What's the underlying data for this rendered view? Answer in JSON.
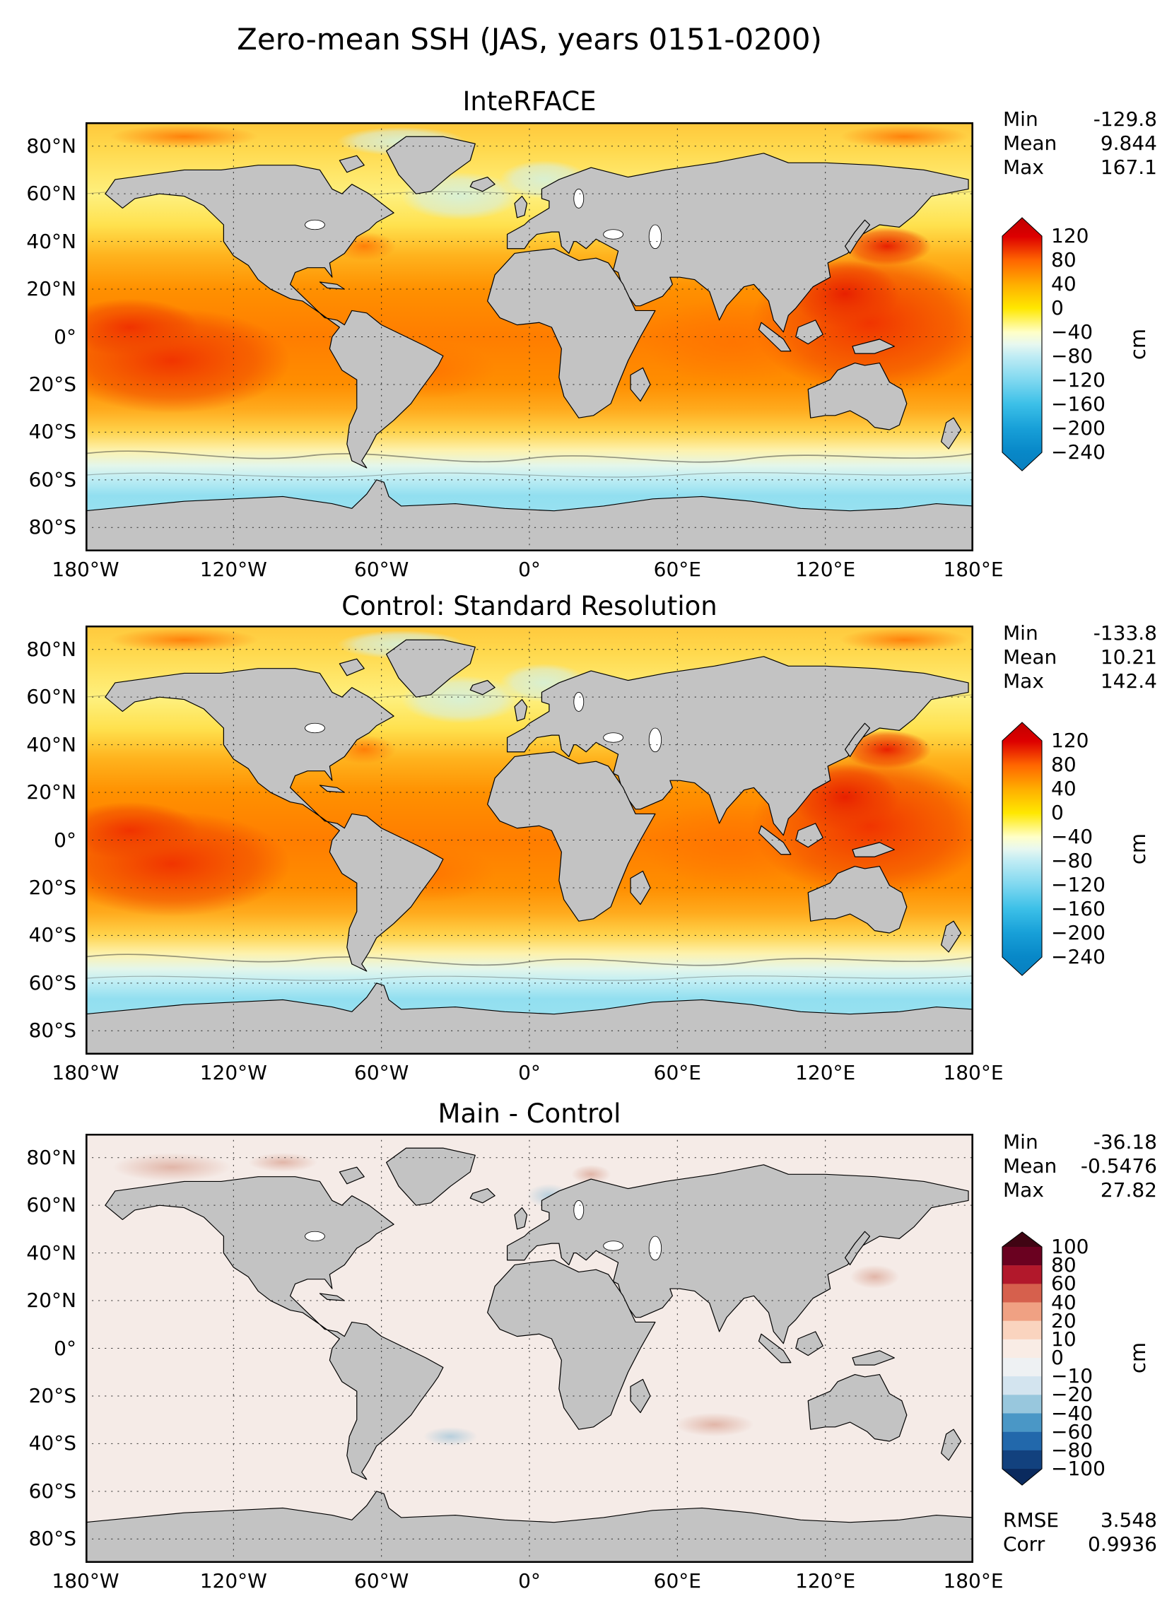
{
  "title": "Zero-mean SSH (JAS, years 0151-0200)",
  "axes": {
    "lat_ticks": [
      "80°N",
      "60°N",
      "40°N",
      "20°N",
      "0°",
      "20°S",
      "40°S",
      "60°S",
      "80°S"
    ],
    "lon_ticks": [
      "180°W",
      "120°W",
      "60°W",
      "0°",
      "60°E",
      "120°E",
      "180°E"
    ]
  },
  "panels": [
    {
      "title": "InteRFACE",
      "stats": [
        {
          "label": "Min",
          "value": "-129.8"
        },
        {
          "label": "Mean",
          "value": "9.844"
        },
        {
          "label": "Max",
          "value": "167.1"
        }
      ],
      "colorbar": {
        "unit": "cm",
        "tick_labels": [
          "120",
          "80",
          "40",
          "0",
          "−40",
          "−80",
          "−120",
          "−160",
          "−200",
          "−240"
        ]
      }
    },
    {
      "title": "Control: Standard Resolution",
      "stats": [
        {
          "label": "Min",
          "value": "-133.8"
        },
        {
          "label": "Mean",
          "value": "10.21"
        },
        {
          "label": "Max",
          "value": "142.4"
        }
      ],
      "colorbar": {
        "unit": "cm",
        "tick_labels": [
          "120",
          "80",
          "40",
          "0",
          "−40",
          "−80",
          "−120",
          "−160",
          "−200",
          "−240"
        ]
      }
    },
    {
      "title": "Main - Control",
      "stats": [
        {
          "label": "Min",
          "value": "-36.18"
        },
        {
          "label": "Mean",
          "value": "-0.5476"
        },
        {
          "label": "Max",
          "value": "27.82"
        }
      ],
      "extra_stats": [
        {
          "label": "RMSE",
          "value": "3.548"
        },
        {
          "label": "Corr",
          "value": "0.9936"
        }
      ],
      "colorbar": {
        "unit": "cm",
        "tick_labels": [
          "100",
          "80",
          "60",
          "40",
          "20",
          "10",
          "0",
          "−10",
          "−20",
          "−40",
          "−60",
          "−80",
          "−100"
        ]
      }
    }
  ],
  "chart_data": {
    "type": "heatmap",
    "subtype": "filled-contour global maps, equirectangular projection",
    "variable": "Zero-mean sea surface height (SSH)",
    "season": "JAS",
    "years": "0151-0200",
    "units": "cm",
    "lon_range": [
      -180,
      180
    ],
    "lat_range": [
      -90,
      90
    ],
    "lat_ticks_deg": [
      80,
      60,
      40,
      20,
      0,
      -20,
      -40,
      -60,
      -80
    ],
    "lon_ticks_deg": [
      -180,
      -120,
      -60,
      0,
      60,
      120,
      180
    ],
    "grid": true,
    "panels": [
      {
        "title": "InteRFACE",
        "min": -129.8,
        "mean": 9.844,
        "max": 167.1,
        "colorbar_ticks": [
          120,
          80,
          40,
          0,
          -40,
          -80,
          -120,
          -160,
          -200,
          -240
        ],
        "colorbar_range": [
          -240,
          120
        ],
        "colorbar_style": "continuous red-orange-yellow to cyan-blue, pointed over/under tips"
      },
      {
        "title": "Control: Standard Resolution",
        "min": -133.8,
        "mean": 10.21,
        "max": 142.4,
        "colorbar_ticks": [
          120,
          80,
          40,
          0,
          -40,
          -80,
          -120,
          -160,
          -200,
          -240
        ],
        "colorbar_range": [
          -240,
          120
        ],
        "colorbar_style": "continuous red-orange-yellow to cyan-blue, pointed over/under tips"
      },
      {
        "title": "Main - Control",
        "min": -36.18,
        "mean": -0.5476,
        "max": 27.82,
        "rmse": 3.548,
        "corr": 0.9936,
        "colorbar_ticks": [
          100,
          80,
          60,
          40,
          20,
          10,
          0,
          -10,
          -20,
          -40,
          -60,
          -80,
          -100
        ],
        "colorbar_range": [
          -100,
          100
        ],
        "colorbar_style": "discrete red-blue diverging, pointed over/under tips"
      }
    ]
  }
}
